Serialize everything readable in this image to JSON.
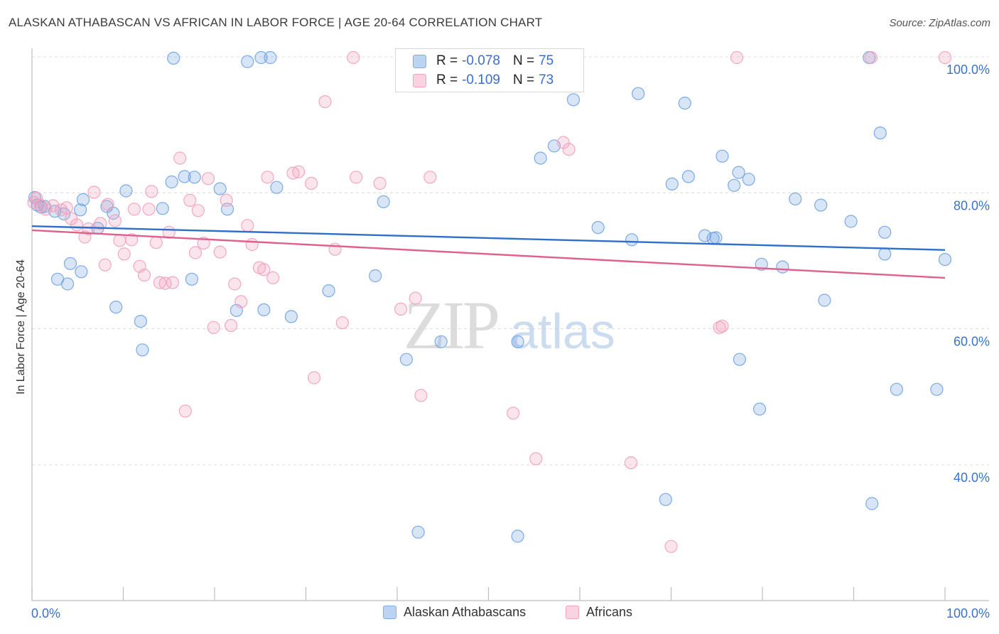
{
  "header": {
    "title": "ALASKAN ATHABASCAN VS AFRICAN IN LABOR FORCE | AGE 20-64 CORRELATION CHART",
    "source": "Source: ZipAtlas.com"
  },
  "watermark": {
    "zip": "ZIP",
    "atlas": "atlas"
  },
  "legend_top": {
    "rows": [
      {
        "r_key": "R = ",
        "r_value": "-0.078",
        "n_key": "N = ",
        "n_value": "75",
        "color": "#7eaee8"
      },
      {
        "r_key": "R = ",
        "r_value": "-0.109",
        "n_key": "N = ",
        "n_value": "73",
        "color": "#f3a3bd"
      }
    ]
  },
  "legend_bottom": {
    "items": [
      {
        "label": "Alaskan Athabascans",
        "color": "#7eaee8"
      },
      {
        "label": "Africans",
        "color": "#f3a3bd"
      }
    ]
  },
  "chart_data": {
    "type": "scatter",
    "title": "ALASKAN ATHABASCAN VS AFRICAN IN LABOR FORCE | AGE 20-64 CORRELATION CHART",
    "xlabel": "",
    "ylabel": "In Labor Force | Age 20-64",
    "xlim": [
      0,
      100
    ],
    "ylim": [
      20,
      104
    ],
    "x_tick_labels": [
      "0.0%",
      "100.0%"
    ],
    "y_ticks": [
      40,
      60,
      80,
      100
    ],
    "y_tick_labels": [
      "40.0%",
      "60.0%",
      "80.0%",
      "100.0%"
    ],
    "grid": true,
    "legend_position": "top-center",
    "series": [
      {
        "name": "Alaskan Athabascans",
        "color": "#6fa3e3",
        "line_color": "#2e6fcc",
        "trend": {
          "x": [
            0,
            100
          ],
          "y": [
            75.1,
            71.6
          ]
        },
        "points": [
          [
            0.3,
            79.3
          ],
          [
            0.6,
            78.2
          ],
          [
            1.0,
            77.9
          ],
          [
            1.4,
            78.0
          ],
          [
            2.5,
            77.3
          ],
          [
            3.5,
            76.9
          ],
          [
            5.3,
            77.5
          ],
          [
            2.8,
            67.3
          ],
          [
            3.9,
            66.6
          ],
          [
            4.2,
            69.6
          ],
          [
            5.4,
            68.4
          ],
          [
            5.6,
            79.0
          ],
          [
            7.2,
            74.8
          ],
          [
            8.2,
            78.0
          ],
          [
            8.9,
            77.0
          ],
          [
            9.2,
            63.2
          ],
          [
            10.3,
            80.3
          ],
          [
            11.9,
            61.1
          ],
          [
            12.1,
            56.9
          ],
          [
            14.3,
            77.7
          ],
          [
            15.3,
            81.6
          ],
          [
            15.5,
            99.8
          ],
          [
            16.7,
            82.4
          ],
          [
            17.5,
            67.3
          ],
          [
            17.8,
            82.3
          ],
          [
            20.6,
            80.6
          ],
          [
            21.4,
            77.6
          ],
          [
            22.4,
            62.7
          ],
          [
            23.6,
            99.3
          ],
          [
            25.1,
            99.9
          ],
          [
            25.4,
            62.8
          ],
          [
            26.1,
            99.9
          ],
          [
            26.8,
            80.8
          ],
          [
            28.4,
            61.8
          ],
          [
            32.5,
            65.6
          ],
          [
            37.6,
            67.8
          ],
          [
            38.5,
            78.7
          ],
          [
            41.0,
            55.5
          ],
          [
            42.3,
            30.1
          ],
          [
            44.8,
            58.1
          ],
          [
            53.2,
            29.5
          ],
          [
            53.2,
            58.1
          ],
          [
            55.7,
            85.1
          ],
          [
            57.2,
            86.9
          ],
          [
            59.3,
            93.7
          ],
          [
            62.0,
            74.9
          ],
          [
            65.7,
            73.1
          ],
          [
            66.4,
            94.6
          ],
          [
            69.4,
            34.9
          ],
          [
            70.1,
            81.3
          ],
          [
            71.5,
            93.2
          ],
          [
            71.9,
            82.4
          ],
          [
            73.7,
            73.7
          ],
          [
            74.6,
            73.3
          ],
          [
            74.9,
            73.4
          ],
          [
            75.6,
            85.4
          ],
          [
            76.9,
            81.1
          ],
          [
            77.4,
            83.0
          ],
          [
            77.5,
            55.5
          ],
          [
            78.5,
            82.0
          ],
          [
            79.7,
            48.2
          ],
          [
            79.9,
            69.5
          ],
          [
            82.2,
            69.1
          ],
          [
            83.6,
            79.1
          ],
          [
            86.4,
            78.2
          ],
          [
            86.8,
            64.2
          ],
          [
            89.7,
            75.8
          ],
          [
            91.7,
            99.9
          ],
          [
            92.0,
            34.3
          ],
          [
            92.9,
            88.8
          ],
          [
            93.4,
            74.2
          ],
          [
            93.4,
            71.0
          ],
          [
            94.7,
            51.1
          ],
          [
            99.1,
            51.1
          ],
          [
            100.0,
            70.2
          ]
        ]
      },
      {
        "name": "Africans",
        "color": "#f2a0ba",
        "line_color": "#e0608a",
        "trend": {
          "x": [
            0,
            100
          ],
          "y": [
            74.5,
            67.5
          ]
        },
        "points": [
          [
            0.2,
            78.6
          ],
          [
            0.5,
            79.2
          ],
          [
            0.9,
            78.2
          ],
          [
            1.5,
            77.6
          ],
          [
            2.3,
            78.1
          ],
          [
            3.2,
            77.5
          ],
          [
            3.8,
            77.8
          ],
          [
            4.3,
            76.2
          ],
          [
            4.9,
            75.3
          ],
          [
            5.8,
            73.5
          ],
          [
            6.2,
            74.7
          ],
          [
            6.8,
            80.1
          ],
          [
            7.5,
            75.5
          ],
          [
            8.0,
            69.4
          ],
          [
            8.3,
            78.3
          ],
          [
            9.1,
            75.9
          ],
          [
            9.6,
            73.0
          ],
          [
            10.1,
            71.0
          ],
          [
            10.9,
            73.1
          ],
          [
            11.2,
            77.6
          ],
          [
            11.8,
            69.2
          ],
          [
            12.3,
            67.9
          ],
          [
            12.8,
            77.6
          ],
          [
            13.1,
            80.2
          ],
          [
            13.6,
            72.7
          ],
          [
            14.0,
            66.8
          ],
          [
            14.6,
            66.7
          ],
          [
            15.0,
            74.2
          ],
          [
            15.4,
            66.8
          ],
          [
            16.2,
            85.1
          ],
          [
            16.8,
            47.9
          ],
          [
            17.3,
            78.9
          ],
          [
            17.9,
            71.2
          ],
          [
            18.2,
            77.4
          ],
          [
            18.8,
            72.6
          ],
          [
            19.3,
            82.1
          ],
          [
            19.9,
            60.2
          ],
          [
            20.6,
            71.3
          ],
          [
            21.3,
            78.9
          ],
          [
            21.8,
            60.5
          ],
          [
            22.2,
            66.6
          ],
          [
            22.9,
            64.0
          ],
          [
            23.6,
            75.2
          ],
          [
            24.1,
            72.4
          ],
          [
            24.9,
            69.0
          ],
          [
            25.4,
            68.7
          ],
          [
            25.8,
            82.3
          ],
          [
            26.4,
            67.5
          ],
          [
            28.6,
            82.9
          ],
          [
            29.2,
            83.1
          ],
          [
            30.6,
            81.4
          ],
          [
            30.9,
            52.8
          ],
          [
            32.1,
            93.4
          ],
          [
            33.2,
            71.7
          ],
          [
            34.0,
            60.9
          ],
          [
            35.2,
            99.9
          ],
          [
            35.5,
            82.3
          ],
          [
            38.1,
            81.4
          ],
          [
            40.4,
            62.9
          ],
          [
            42.0,
            64.5
          ],
          [
            42.6,
            50.2
          ],
          [
            43.6,
            82.3
          ],
          [
            52.7,
            47.6
          ],
          [
            55.2,
            40.9
          ],
          [
            58.2,
            87.4
          ],
          [
            58.8,
            86.4
          ],
          [
            65.6,
            40.3
          ],
          [
            70.0,
            28.0
          ],
          [
            75.3,
            60.2
          ],
          [
            75.6,
            60.4
          ],
          [
            77.2,
            99.9
          ],
          [
            91.9,
            99.9
          ],
          [
            100.0,
            99.9
          ]
        ]
      }
    ]
  }
}
